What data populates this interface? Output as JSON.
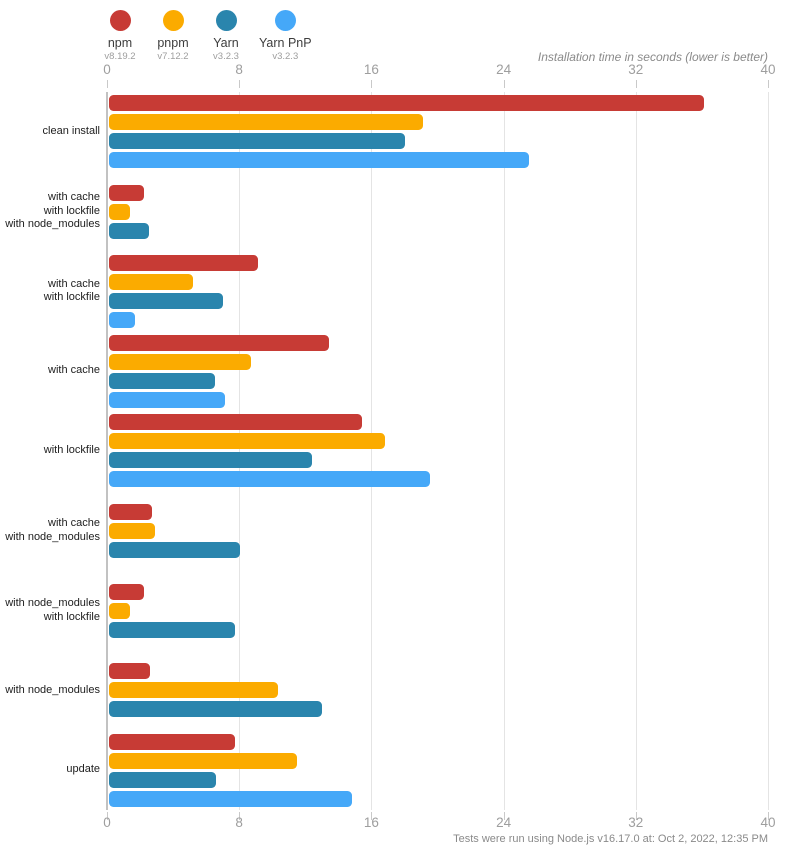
{
  "legend": {
    "items": [
      {
        "name": "npm",
        "version": "v8.19.2",
        "color": "#c73b35"
      },
      {
        "name": "pnpm",
        "version": "v7.12.2",
        "color": "#fbab00"
      },
      {
        "name": "Yarn",
        "version": "v3.2.3",
        "color": "#2a85ad"
      },
      {
        "name": "Yarn PnP",
        "version": "v3.2.3",
        "color": "#45a8f8"
      }
    ]
  },
  "footer": {
    "text": "Tests were run using Node.js v16.17.0 at: Oct 2, 2022, 12:35 PM"
  },
  "chart_data": {
    "type": "bar",
    "orientation": "horizontal",
    "title": "Installation time in seconds (lower is better)",
    "xlabel": "Installation time in seconds",
    "ylabel": "",
    "unit": "seconds",
    "xlim": [
      0,
      40
    ],
    "ticks": [
      0,
      8,
      16,
      24,
      32,
      40
    ],
    "grid": true,
    "legend_position": "top-left",
    "categories": [
      [
        "clean install"
      ],
      [
        "with cache",
        "with lockfile",
        "with node_modules"
      ],
      [
        "with cache",
        "with lockfile"
      ],
      [
        "with cache"
      ],
      [
        "with lockfile"
      ],
      [
        "with cache",
        "with node_modules"
      ],
      [
        "with node_modules",
        "with lockfile"
      ],
      [
        "with node_modules"
      ],
      [
        "update"
      ]
    ],
    "series": [
      {
        "name": "npm",
        "color": "#c73b35",
        "values": [
          36.0,
          2.1,
          9.0,
          13.3,
          15.3,
          2.6,
          2.1,
          2.5,
          7.6
        ]
      },
      {
        "name": "pnpm",
        "color": "#fbab00",
        "values": [
          19.0,
          1.3,
          5.1,
          8.6,
          16.7,
          2.8,
          1.3,
          10.2,
          11.4
        ]
      },
      {
        "name": "Yarn",
        "color": "#2a85ad",
        "values": [
          17.9,
          2.4,
          6.9,
          6.4,
          12.3,
          7.9,
          7.6,
          12.9,
          6.5
        ]
      },
      {
        "name": "Yarn PnP",
        "color": "#45a8f8",
        "values": [
          25.4,
          null,
          1.6,
          7.0,
          19.4,
          null,
          null,
          null,
          14.7
        ]
      }
    ]
  }
}
